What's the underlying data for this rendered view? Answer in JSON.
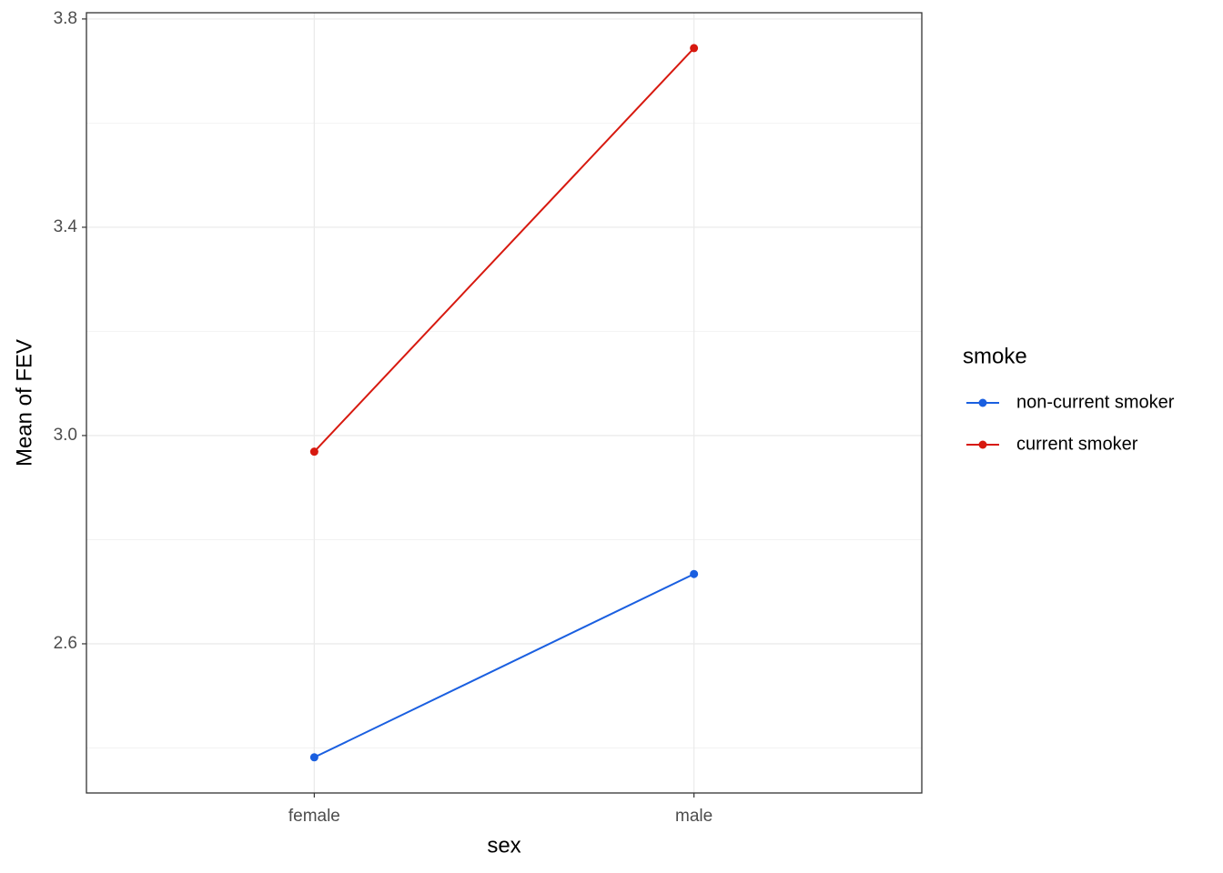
{
  "chart_data": {
    "type": "line",
    "x_label": "sex",
    "y_label": "Mean of FEV",
    "legend_title": "smoke",
    "legend_position": "right",
    "categories": [
      "female",
      "male"
    ],
    "series": [
      {
        "name": "non-current smoker",
        "color": "#1a5fe0",
        "values": [
          2.382,
          2.734
        ]
      },
      {
        "name": "current smoker",
        "color": "#d7190f",
        "values": [
          2.969,
          3.744
        ]
      }
    ],
    "ylim": [
      2.3135,
      3.812
    ],
    "yticks": [
      2.6,
      {
        "value": 3,
        "label": "3.0"
      },
      3.4,
      3.8
    ],
    "minor_yticks": [
      2.4,
      2.8,
      3.2,
      3.6
    ],
    "grid": true
  }
}
